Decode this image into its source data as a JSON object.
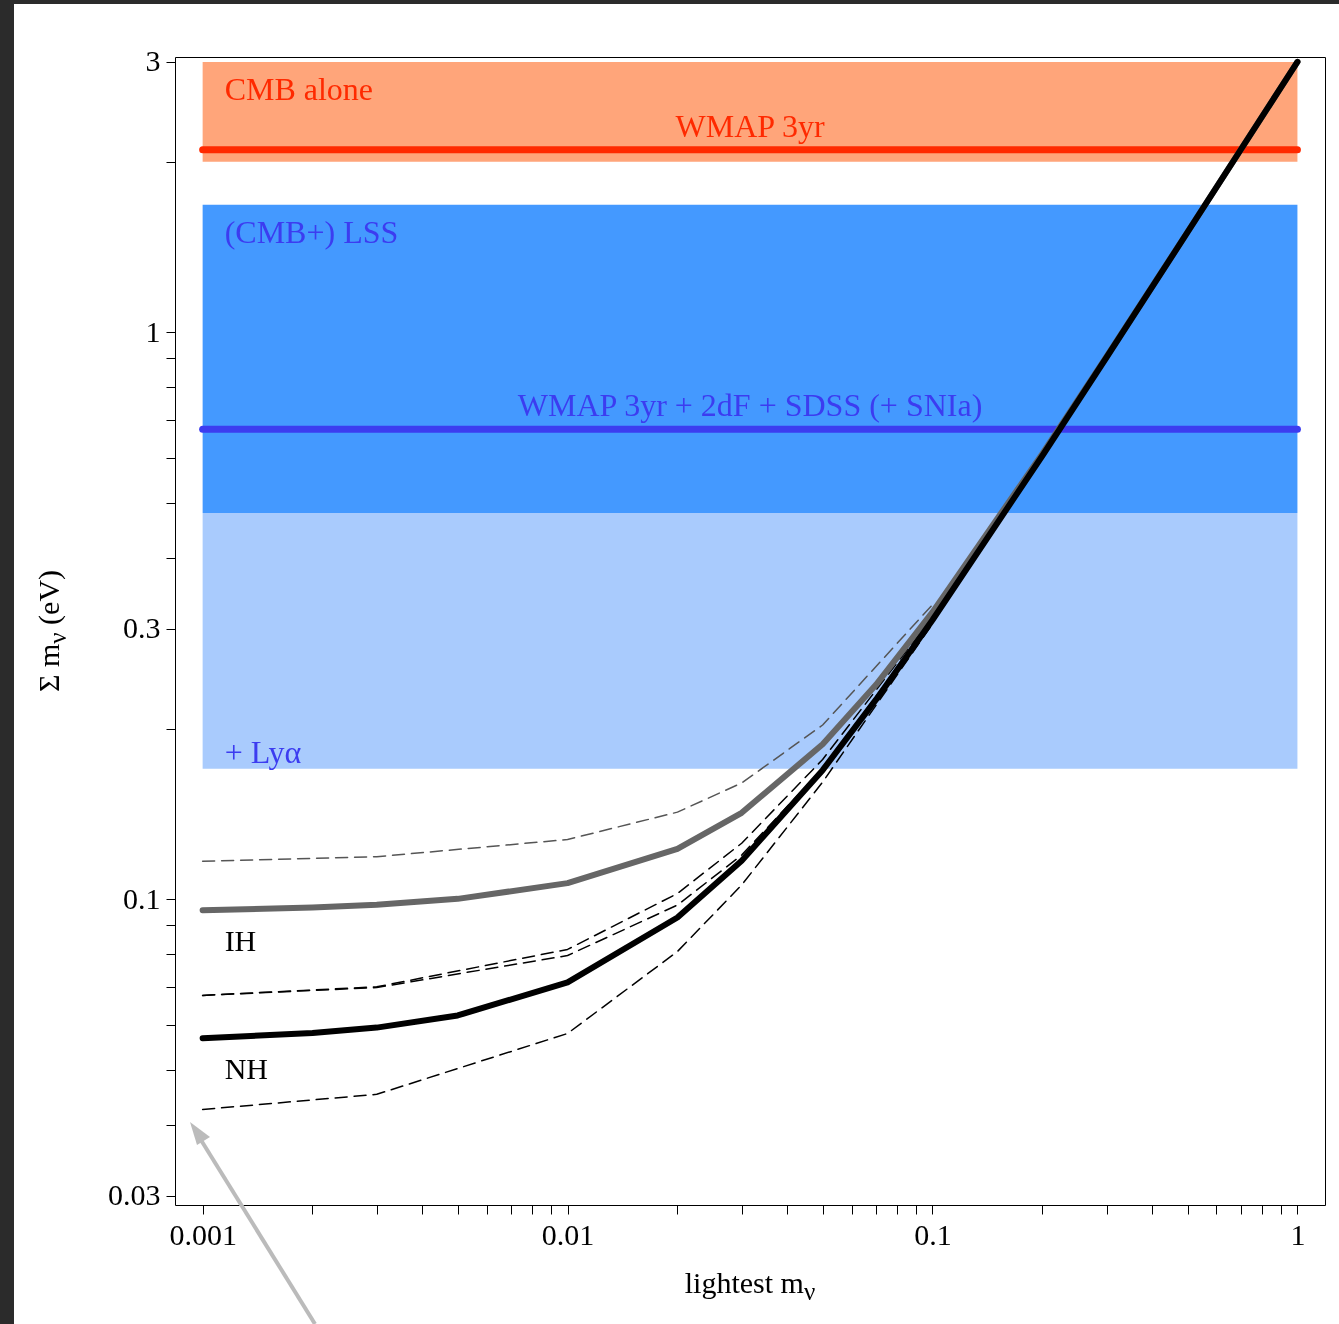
{
  "chart_data": {
    "type": "line",
    "xlabel": "lightest m$_{ν}$",
    "ylabel": "Σ m$_{ν}$ (eV)",
    "log": "xy",
    "grid": false,
    "marker": "none",
    "xlim": [
      0.00084,
      1.19
    ],
    "ylim": [
      0.0289,
      3.06
    ],
    "xticks": [
      0.001,
      {
        "value": 0.002,
        "label": null
      },
      {
        "value": 0.003,
        "label": null
      },
      {
        "value": 0.004,
        "label": null
      },
      {
        "value": 0.005,
        "label": null
      },
      {
        "value": 0.006,
        "label": null
      },
      {
        "value": 0.007,
        "label": null
      },
      {
        "value": 0.008,
        "label": null
      },
      {
        "value": 0.009,
        "label": null
      },
      0.01,
      {
        "value": 0.02,
        "label": null
      },
      {
        "value": 0.03,
        "label": null
      },
      {
        "value": 0.04,
        "label": null
      },
      {
        "value": 0.05,
        "label": null
      },
      {
        "value": 0.06,
        "label": null
      },
      {
        "value": 0.07,
        "label": null
      },
      {
        "value": 0.08,
        "label": null
      },
      {
        "value": 0.09,
        "label": null
      },
      0.1,
      {
        "value": 0.2,
        "label": null
      },
      {
        "value": 0.3,
        "label": null
      },
      {
        "value": 0.4,
        "label": null
      },
      {
        "value": 0.5,
        "label": null
      },
      {
        "value": 0.6,
        "label": null
      },
      {
        "value": 0.7,
        "label": null
      },
      {
        "value": 0.8,
        "label": null
      },
      {
        "value": 0.9,
        "label": null
      },
      1
    ],
    "yticks": [
      0.03,
      {
        "value": 0.04,
        "label": null
      },
      {
        "value": 0.05,
        "label": null
      },
      {
        "value": 0.06,
        "label": null
      },
      {
        "value": 0.07,
        "label": null
      },
      {
        "value": 0.08,
        "label": null
      },
      {
        "value": 0.09,
        "label": null
      },
      0.1,
      {
        "value": 0.2,
        "label": null
      },
      0.3,
      {
        "value": 0.4,
        "label": null
      },
      {
        "value": 0.5,
        "label": null
      },
      {
        "value": 0.6,
        "label": null
      },
      {
        "value": 0.7,
        "label": null
      },
      {
        "value": 0.8,
        "label": null
      },
      {
        "value": 0.9,
        "label": null
      },
      1,
      {
        "value": 2,
        "label": null
      },
      3
    ],
    "x": [
      0.001,
      0.002,
      0.003,
      0.005,
      0.01,
      0.02,
      0.03,
      0.05,
      0.07,
      0.1,
      0.2,
      0.3,
      0.5,
      1
    ],
    "series": [
      {
        "color": "#000000",
        "line_style": "dashed",
        "x": [
          0.001,
          0.003,
          0.01,
          0.02,
          0.03,
          0.05,
          0.1
        ],
        "values": [
          0.0426,
          0.0453,
          0.058,
          0.0809,
          0.106,
          0.161,
          0.306
        ]
      },
      {
        "color": "#000000",
        "line_style": "dashed",
        "x": [
          0.001,
          0.003,
          0.01,
          0.02,
          0.03,
          0.05,
          0.1
        ],
        "values": [
          0.0677,
          0.0701,
          0.0816,
          0.1024,
          0.1256,
          0.1765,
          0.315
        ]
      },
      {
        "color": "#000000",
        "line_style": "dashed",
        "x": [
          0.001,
          0.003,
          0.01,
          0.02,
          0.03,
          0.05,
          0.1
        ],
        "values": [
          0.0677,
          0.0699,
          0.0796,
          0.0977,
          0.1197,
          0.17,
          0.311
        ]
      },
      {
        "color": "#555555",
        "line_style": "dashed",
        "x": [
          0.001,
          0.003,
          0.01,
          0.02,
          0.03,
          0.05,
          0.1
        ],
        "values": [
          0.1167,
          0.1189,
          0.1275,
          0.1425,
          0.1604,
          0.203,
          0.331
        ]
      },
      {
        "name": "IH",
        "color": "#666666",
        "line_style": "solid",
        "values": [
          0.0957,
          0.0967,
          0.0978,
          0.1002,
          0.1068,
          0.1228,
          0.1421,
          0.1877,
          0.239,
          0.321,
          0.611,
          0.907,
          1.504,
          3.0
        ]
      },
      {
        "name": "NH",
        "color": "#000000",
        "line_style": "solid",
        "values": [
          0.0569,
          0.0581,
          0.0594,
          0.0624,
          0.0714,
          0.0929,
          0.117,
          0.169,
          0.225,
          0.311,
          0.606,
          0.904,
          1.502,
          3.0
        ]
      }
    ],
    "bands": [
      {
        "axis": "y",
        "from": 2,
        "to": 3,
        "color": "#ffa57a",
        "label": "CMB alone"
      },
      {
        "axis": "y",
        "from": 0.48,
        "to": 1.68,
        "color": "#4499ff",
        "label": "(CMB+) LSS"
      },
      {
        "axis": "y",
        "from": 0.17,
        "to": 0.48,
        "color": "#a9cbfd",
        "label": "+ Lyα"
      }
    ],
    "ref_lines": [
      {
        "axis": "y",
        "value": 2.1,
        "label": "WMAP 3yr",
        "color": "#ff2a00"
      },
      {
        "axis": "y",
        "value": 0.675,
        "label": "WMAP 3yr + 2dF + SDSS (+ SNIa)",
        "color": "#3c3cf0"
      }
    ]
  }
}
